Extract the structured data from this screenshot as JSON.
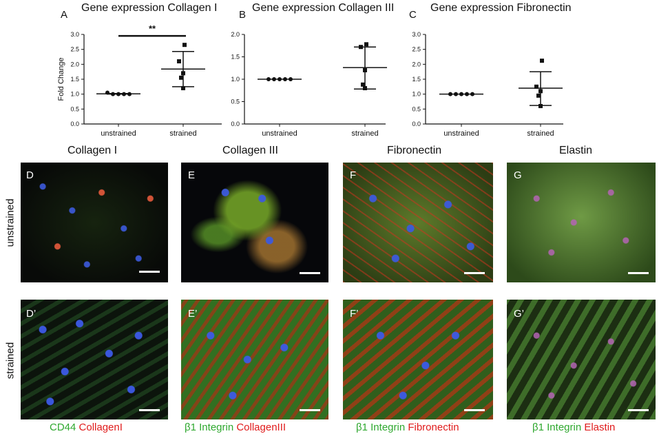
{
  "chart_data": [
    {
      "panel": "A",
      "type": "scatter",
      "title": "Gene expression Collagen I",
      "ylabel": "Fold Change",
      "ylim": [
        0,
        3.0
      ],
      "yticks": [
        "0.0",
        "0.5",
        "1.0",
        "1.5",
        "2.0",
        "2.5",
        "3.0"
      ],
      "categories": [
        "unstrained",
        "strained"
      ],
      "series": [
        {
          "category": "unstrained",
          "marker": "circle",
          "values": [
            1.05,
            1.0,
            1.0,
            1.0,
            1.0
          ],
          "mean": 1.01,
          "sd_low": 1.0,
          "sd_high": 1.02
        },
        {
          "category": "strained",
          "marker": "square",
          "values": [
            2.65,
            2.1,
            1.7,
            1.55,
            1.2
          ],
          "mean": 1.84,
          "sd_low": 1.25,
          "sd_high": 2.43
        }
      ],
      "significance": {
        "label": "**",
        "between": [
          "unstrained",
          "strained"
        ],
        "y": 2.95
      }
    },
    {
      "panel": "B",
      "type": "scatter",
      "title": "Gene expression Collagen III",
      "ylabel": "",
      "ylim": [
        0,
        2.0
      ],
      "yticks": [
        "0.0",
        "0.5",
        "1.0",
        "1.5",
        "2.0"
      ],
      "categories": [
        "unstrained",
        "strained"
      ],
      "series": [
        {
          "category": "unstrained",
          "marker": "circle",
          "values": [
            1.0,
            1.0,
            1.0,
            1.0,
            1.0
          ],
          "mean": 1.0,
          "sd_low": 1.0,
          "sd_high": 1.0
        },
        {
          "category": "strained",
          "marker": "square",
          "values": [
            1.78,
            1.72,
            1.2,
            0.88,
            0.8
          ],
          "mean": 1.26,
          "sd_low": 0.78,
          "sd_high": 1.72
        }
      ]
    },
    {
      "panel": "C",
      "type": "scatter",
      "title": "Gene expression Fibronectin",
      "ylabel": "",
      "ylim": [
        0,
        3.0
      ],
      "yticks": [
        "0.0",
        "0.5",
        "1.0",
        "1.5",
        "2.0",
        "2.5",
        "3.0"
      ],
      "categories": [
        "unstrained",
        "strained"
      ],
      "series": [
        {
          "category": "unstrained",
          "marker": "circle",
          "values": [
            1.0,
            1.0,
            1.0,
            1.0,
            1.0
          ],
          "mean": 1.0,
          "sd_low": 1.0,
          "sd_high": 1.0
        },
        {
          "category": "strained",
          "marker": "square",
          "values": [
            2.12,
            1.25,
            1.1,
            0.95,
            0.6
          ],
          "mean": 1.2,
          "sd_low": 0.62,
          "sd_high": 1.75
        }
      ]
    }
  ],
  "figure": {
    "column_titles": [
      "Collagen I",
      "Collagen III",
      "Fibronectin",
      "Elastin"
    ],
    "row_titles": [
      "unstrained",
      "strained"
    ],
    "panels_unstrained": [
      "D",
      "E",
      "F",
      "G"
    ],
    "panels_strained": [
      "D’",
      "E’",
      "F’",
      "G’"
    ],
    "legends": [
      {
        "green": "CD44",
        "red": "CollagenI"
      },
      {
        "green": "β1 Integrin",
        "red": "CollagenIII"
      },
      {
        "green": "β1 Integrin",
        "red": "Fibronectin"
      },
      {
        "green": "β1 Integrin",
        "red": "Elastin"
      }
    ]
  },
  "colors": {
    "axis": "#111111",
    "legend_green": "#2fa82f",
    "legend_red": "#e01b1b"
  }
}
